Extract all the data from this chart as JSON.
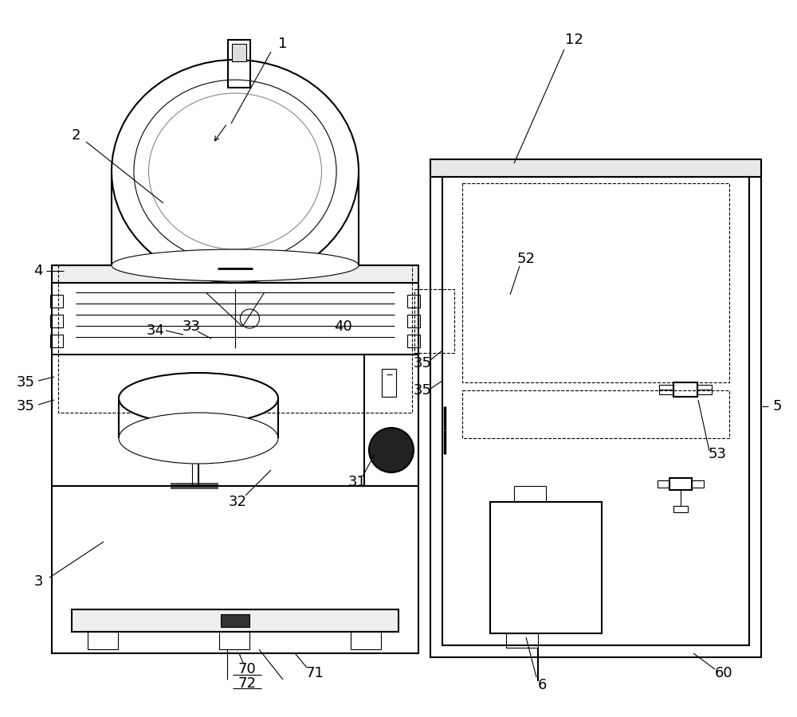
{
  "bg_color": "#ffffff",
  "line_color": "#000000",
  "lw": 1.5,
  "tlw": 0.8,
  "fs": 13
}
